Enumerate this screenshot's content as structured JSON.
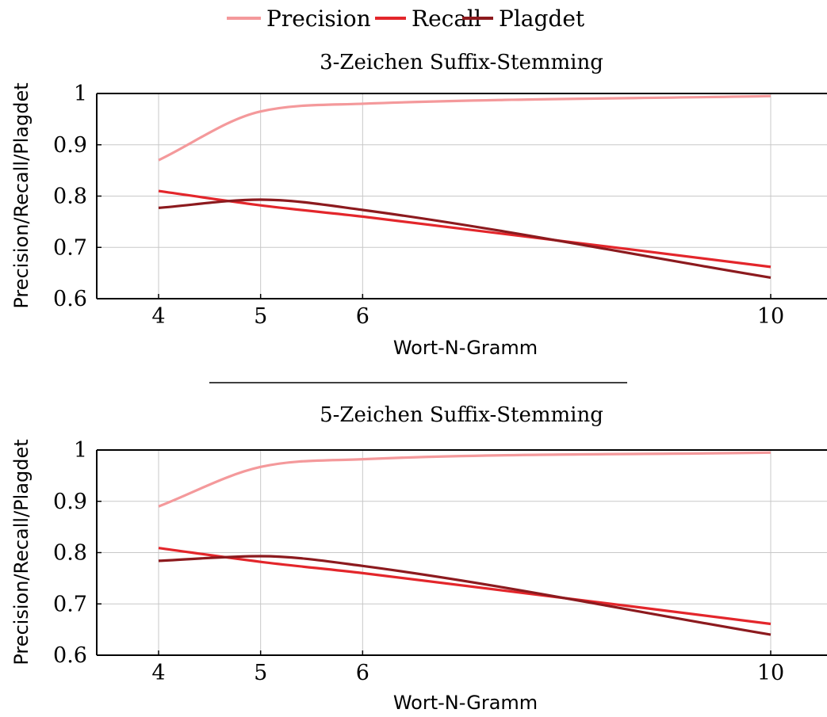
{
  "legend": {
    "position": "top-center",
    "items": [
      {
        "label": "Precision",
        "color": "#f4999b"
      },
      {
        "label": "Recall",
        "color": "#e3262b"
      },
      {
        "label": "Plagdet",
        "color": "#8c1a1e"
      }
    ]
  },
  "chart_data": [
    {
      "type": "line",
      "title": "3-Zeichen Suffix-Stemming",
      "xlabel": "Wort-N-Gramm",
      "ylabel": "Precision/Recall/Plagdet",
      "xticks": [
        "4",
        "5",
        "6",
        "10"
      ],
      "yticks": [
        "0.6",
        "0.7",
        "0.8",
        "0.9",
        "1"
      ],
      "ylim": [
        0.6,
        1.0
      ],
      "grid": true,
      "x": [
        4,
        5,
        6,
        10
      ],
      "series": [
        {
          "name": "Precision",
          "color": "#f4999b",
          "values": [
            0.87,
            0.965,
            0.98,
            0.995
          ]
        },
        {
          "name": "Recall",
          "color": "#e3262b",
          "values": [
            0.81,
            0.782,
            0.76,
            0.662
          ]
        },
        {
          "name": "Plagdet",
          "color": "#8c1a1e",
          "values": [
            0.777,
            0.793,
            0.773,
            0.641
          ]
        }
      ]
    },
    {
      "type": "line",
      "title": "5-Zeichen Suffix-Stemming",
      "xlabel": "Wort-N-Gramm",
      "ylabel": "Precision/Recall/Plagdet",
      "xticks": [
        "4",
        "5",
        "6",
        "10"
      ],
      "yticks": [
        "0.6",
        "0.7",
        "0.8",
        "0.9",
        "1"
      ],
      "ylim": [
        0.6,
        1.0
      ],
      "grid": true,
      "x": [
        4,
        5,
        6,
        10
      ],
      "series": [
        {
          "name": "Precision",
          "color": "#f4999b",
          "values": [
            0.89,
            0.967,
            0.982,
            0.995
          ]
        },
        {
          "name": "Recall",
          "color": "#e3262b",
          "values": [
            0.809,
            0.782,
            0.76,
            0.661
          ]
        },
        {
          "name": "Plagdet",
          "color": "#8c1a1e",
          "values": [
            0.784,
            0.793,
            0.774,
            0.64
          ]
        }
      ]
    }
  ]
}
